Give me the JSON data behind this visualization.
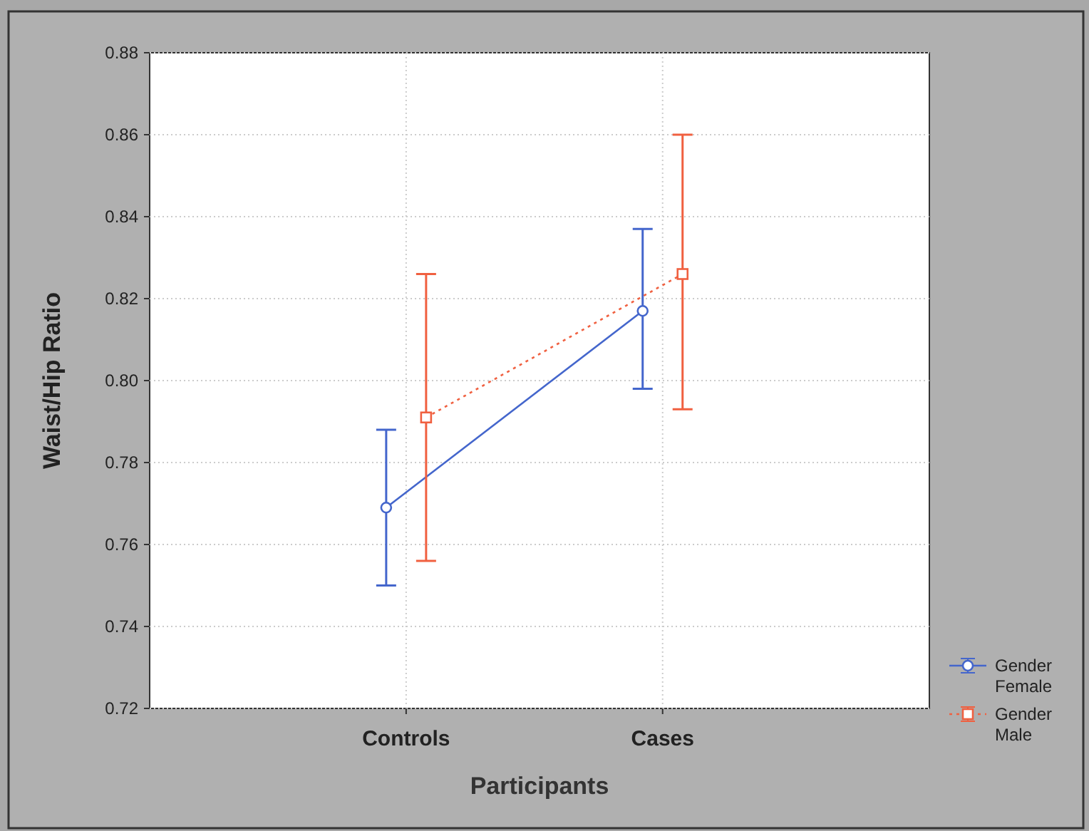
{
  "chart_data": {
    "type": "line",
    "xlabel": "Participants",
    "ylabel": "Waist/Hip Ratio",
    "categories": [
      "Controls",
      "Cases"
    ],
    "ylim": [
      0.72,
      0.88
    ],
    "yticks": [
      {
        "value": 0.72,
        "label": "0.72"
      },
      {
        "value": 0.74,
        "label": "0.74"
      },
      {
        "value": 0.76,
        "label": "0.76"
      },
      {
        "value": 0.78,
        "label": "0.78"
      },
      {
        "value": 0.8,
        "label": "0.80"
      },
      {
        "value": 0.82,
        "label": "0.82"
      },
      {
        "value": 0.84,
        "label": "0.84"
      },
      {
        "value": 0.86,
        "label": "0.86"
      },
      {
        "value": 0.88,
        "label": "0.88"
      }
    ],
    "grid": true,
    "legend": "bottom right",
    "series": [
      {
        "name": "Gender Female",
        "color": "#4466cc",
        "values": [
          0.769,
          0.817
        ],
        "errors": [
          [
            0.75,
            0.788
          ],
          [
            0.798,
            0.837
          ]
        ],
        "marker": "circle",
        "line_style": "solid"
      },
      {
        "name": "Gender Male",
        "color": "#f06040",
        "values": [
          0.791,
          0.826
        ],
        "errors": [
          [
            0.756,
            0.826
          ],
          [
            0.793,
            0.86
          ]
        ],
        "marker": "square",
        "line_style": "dotted"
      }
    ]
  }
}
